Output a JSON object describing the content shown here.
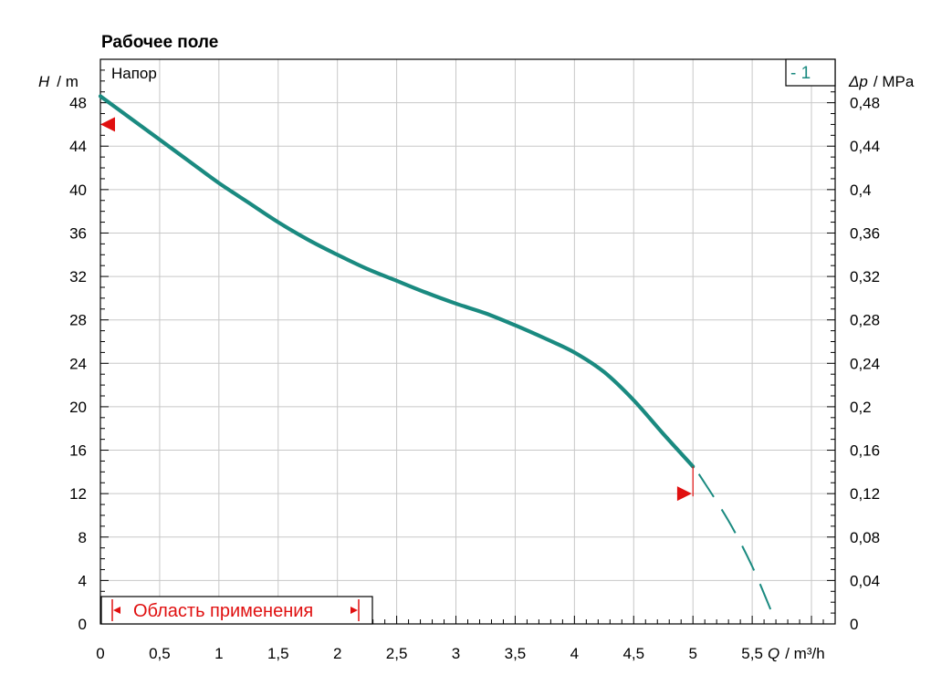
{
  "chart_data": {
    "type": "line",
    "title": "Рабочее поле",
    "ylabel_symbol": "H",
    "ylabel_unit": "/ m",
    "y2label_symbol": "Δp",
    "y2label_unit": "/ MPa",
    "xlabel_symbol": "Q",
    "xlabel_unit": "/ m³/h",
    "xlim": [
      0,
      6.2
    ],
    "ylim": [
      0,
      52
    ],
    "y2lim": [
      0,
      0.52
    ],
    "x_ticks": [
      "0",
      "0,5",
      "1",
      "1,5",
      "2",
      "2,5",
      "3",
      "3,5",
      "4",
      "4,5",
      "5",
      "5,5"
    ],
    "x_tick_values": [
      0,
      0.5,
      1,
      1.5,
      2,
      2.5,
      3,
      3.5,
      4,
      4.5,
      5,
      5.5
    ],
    "y_ticks": [
      "0",
      "4",
      "8",
      "12",
      "16",
      "20",
      "24",
      "28",
      "32",
      "36",
      "40",
      "44",
      "48"
    ],
    "y_tick_values": [
      0,
      4,
      8,
      12,
      16,
      20,
      24,
      28,
      32,
      36,
      40,
      44,
      48
    ],
    "y2_ticks": [
      "0",
      "0,04",
      "0,08",
      "0,12",
      "0,16",
      "0,2",
      "0,24",
      "0,28",
      "0,32",
      "0,36",
      "0,4",
      "0,44",
      "0,48"
    ],
    "y2_tick_values": [
      0,
      0.04,
      0.08,
      0.12,
      0.16,
      0.2,
      0.24,
      0.28,
      0.32,
      0.36,
      0.4,
      0.44,
      0.48
    ],
    "grid": true,
    "curve_label": "Напор",
    "legend": "- 1",
    "series": [
      {
        "name": "- 1",
        "color": "#1a8a80",
        "x": [
          0,
          0.25,
          0.5,
          0.75,
          1.0,
          1.25,
          1.5,
          1.75,
          2.0,
          2.25,
          2.5,
          2.75,
          3.0,
          3.25,
          3.5,
          3.75,
          4.0,
          4.25,
          4.5,
          4.75,
          5.0
        ],
        "y": [
          48.6,
          46.6,
          44.6,
          42.6,
          40.6,
          38.8,
          37.0,
          35.4,
          34.0,
          32.7,
          31.6,
          30.5,
          29.5,
          28.6,
          27.5,
          26.3,
          25.0,
          23.2,
          20.6,
          17.5,
          14.5
        ]
      }
    ],
    "extrapolation": {
      "color": "#1a8a80",
      "x": [
        5.05,
        5.3,
        5.5,
        5.66
      ],
      "y": [
        13.8,
        9.5,
        5.3,
        1.2
      ]
    },
    "markers": [
      {
        "x": 0,
        "y": 46,
        "color": "#e01010",
        "direction": "left"
      },
      {
        "x": 4.99,
        "y": 12,
        "color": "#e01010",
        "direction": "right"
      }
    ],
    "range_label": "Область применения",
    "range_color": "#e01010"
  }
}
